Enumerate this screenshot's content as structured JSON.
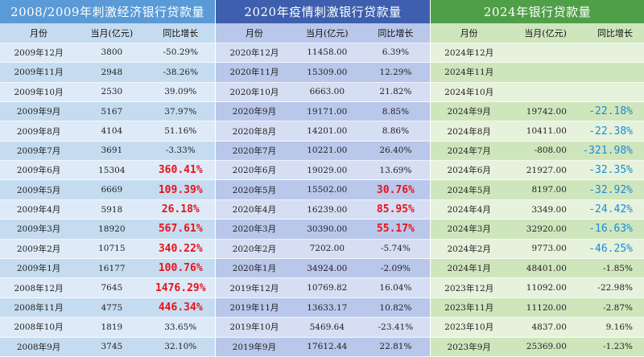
{
  "panels": [
    {
      "title": "2008/2009年刺激经济银行贷款量",
      "headers": [
        "月份",
        "当月(亿元)",
        "同比增长"
      ],
      "rows": [
        [
          "2009年12月",
          "3800",
          "-50.29%",
          ""
        ],
        [
          "2009年11月",
          "2948",
          "-38.26%",
          ""
        ],
        [
          "2009年10月",
          "2530",
          "39.09%",
          ""
        ],
        [
          "2009年9月",
          "5167",
          "37.97%",
          ""
        ],
        [
          "2009年8月",
          "4104",
          "51.16%",
          ""
        ],
        [
          "2009年7月",
          "3691",
          "-3.33%",
          ""
        ],
        [
          "2009年6月",
          "15304",
          "360.41%",
          "red"
        ],
        [
          "2009年5月",
          "6669",
          "109.39%",
          "red"
        ],
        [
          "2009年4月",
          "5918",
          "26.18%",
          "red"
        ],
        [
          "2009年3月",
          "18920",
          "567.61%",
          "red"
        ],
        [
          "2009年2月",
          "10715",
          "340.22%",
          "red"
        ],
        [
          "2009年1月",
          "16177",
          "100.76%",
          "red"
        ],
        [
          "2008年12月",
          "7645",
          "1476.29%",
          "red"
        ],
        [
          "2008年11月",
          "4775",
          "446.34%",
          "red"
        ],
        [
          "2008年10月",
          "1819",
          "33.65%",
          ""
        ],
        [
          "2008年9月",
          "3745",
          "32.10%",
          ""
        ]
      ]
    },
    {
      "title": "2020年疫情刺激银行贷款量",
      "headers": [
        "月份",
        "当月(亿元)",
        "同比增长"
      ],
      "rows": [
        [
          "2020年12月",
          "11458.00",
          "6.39%",
          ""
        ],
        [
          "2020年11月",
          "15309.00",
          "12.29%",
          ""
        ],
        [
          "2020年10月",
          "6663.00",
          "21.82%",
          ""
        ],
        [
          "2020年9月",
          "19171.00",
          "8.85%",
          ""
        ],
        [
          "2020年8月",
          "14201.00",
          "8.86%",
          ""
        ],
        [
          "2020年7月",
          "10221.00",
          "26.40%",
          ""
        ],
        [
          "2020年6月",
          "19029.00",
          "13.69%",
          ""
        ],
        [
          "2020年5月",
          "15502.00",
          "30.76%",
          "red"
        ],
        [
          "2020年4月",
          "16239.00",
          "85.95%",
          "red"
        ],
        [
          "2020年3月",
          "30390.00",
          "55.17%",
          "red"
        ],
        [
          "2020年2月",
          "7202.00",
          "-5.74%",
          ""
        ],
        [
          "2020年1月",
          "34924.00",
          "-2.09%",
          ""
        ],
        [
          "2019年12月",
          "10769.82",
          "16.04%",
          ""
        ],
        [
          "2019年11月",
          "13633.17",
          "10.82%",
          ""
        ],
        [
          "2019年10月",
          "5469.64",
          "-23.41%",
          ""
        ],
        [
          "2019年9月",
          "17612.44",
          "22.81%",
          ""
        ]
      ]
    },
    {
      "title": "2024年银行贷款量",
      "headers": [
        "月份",
        "当月(亿元)",
        "同比增长"
      ],
      "rows": [
        [
          "2024年12月",
          "",
          "",
          ""
        ],
        [
          "2024年11月",
          "",
          "",
          ""
        ],
        [
          "2024年10月",
          "",
          "",
          ""
        ],
        [
          "2024年9月",
          "19742.00",
          "-22.18%",
          "blue"
        ],
        [
          "2024年8月",
          "10411.00",
          "-22.38%",
          "blue"
        ],
        [
          "2024年7月",
          "-808.00",
          "-321.98%",
          "blue"
        ],
        [
          "2024年6月",
          "21927.00",
          "-32.35%",
          "blue"
        ],
        [
          "2024年5月",
          "8197.00",
          "-32.92%",
          "blue"
        ],
        [
          "2024年4月",
          "3349.00",
          "-24.42%",
          "blue"
        ],
        [
          "2024年3月",
          "32920.00",
          "-16.63%",
          "blue"
        ],
        [
          "2024年2月",
          "9773.00",
          "-46.25%",
          "blue"
        ],
        [
          "2024年1月",
          "48401.00",
          "-1.85%",
          ""
        ],
        [
          "2023年12月",
          "11092.00",
          "-22.98%",
          ""
        ],
        [
          "2023年11月",
          "11120.00",
          "-2.87%",
          ""
        ],
        [
          "2023年10月",
          "4837.00",
          "9.16%",
          ""
        ],
        [
          "2023年9月",
          "25369.00",
          "-1.23%",
          ""
        ]
      ]
    }
  ],
  "colors": {
    "panel1_title_bg": "#5a9ad6",
    "panel2_title_bg": "#3d5fae",
    "panel3_title_bg": "#4f9f48",
    "highlight_red": "#e8121b",
    "highlight_blue": "#1a8bd6"
  }
}
